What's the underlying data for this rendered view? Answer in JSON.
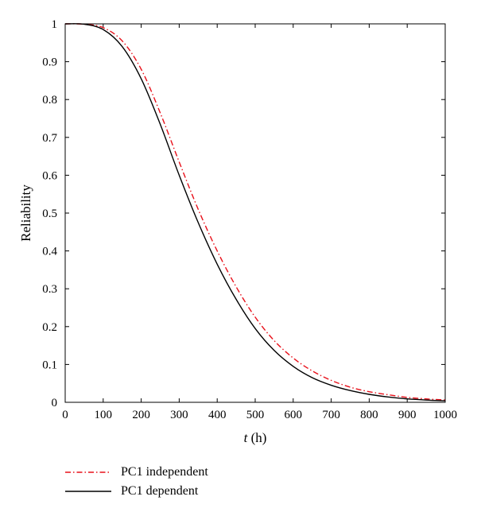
{
  "chart_data": {
    "type": "line",
    "title": "",
    "xlabel_var": "t",
    "xlabel_unit": " (h)",
    "ylabel": "Reliability",
    "xlim": [
      0,
      1000
    ],
    "ylim": [
      0,
      1
    ],
    "xticks": [
      0,
      100,
      200,
      300,
      400,
      500,
      600,
      700,
      800,
      900,
      1000
    ],
    "yticks": [
      0,
      0.1,
      0.2,
      0.3,
      0.4,
      0.5,
      0.6,
      0.7,
      0.8,
      0.9,
      1
    ],
    "grid": false,
    "legend_position": "bottom-left, below plot",
    "series": [
      {
        "name": "PC1 independent",
        "color": "#e8101a",
        "style": "dash-dot",
        "x": [
          0,
          50,
          100,
          150,
          200,
          250,
          300,
          350,
          400,
          450,
          500,
          550,
          600,
          650,
          700,
          750,
          800,
          850,
          900,
          950,
          1000
        ],
        "y": [
          1.0,
          0.999,
          0.99,
          0.955,
          0.88,
          0.765,
          0.635,
          0.51,
          0.4,
          0.305,
          0.225,
          0.163,
          0.117,
          0.083,
          0.058,
          0.04,
          0.028,
          0.02,
          0.013,
          0.009,
          0.006
        ]
      },
      {
        "name": "PC1 dependent",
        "color": "#000000",
        "style": "solid",
        "x": [
          0,
          50,
          100,
          150,
          200,
          250,
          300,
          350,
          400,
          450,
          500,
          550,
          600,
          650,
          700,
          750,
          800,
          850,
          900,
          950,
          1000
        ],
        "y": [
          1.0,
          0.999,
          0.985,
          0.94,
          0.855,
          0.735,
          0.6,
          0.475,
          0.365,
          0.272,
          0.195,
          0.137,
          0.095,
          0.065,
          0.045,
          0.031,
          0.021,
          0.014,
          0.009,
          0.006,
          0.004
        ]
      }
    ]
  }
}
